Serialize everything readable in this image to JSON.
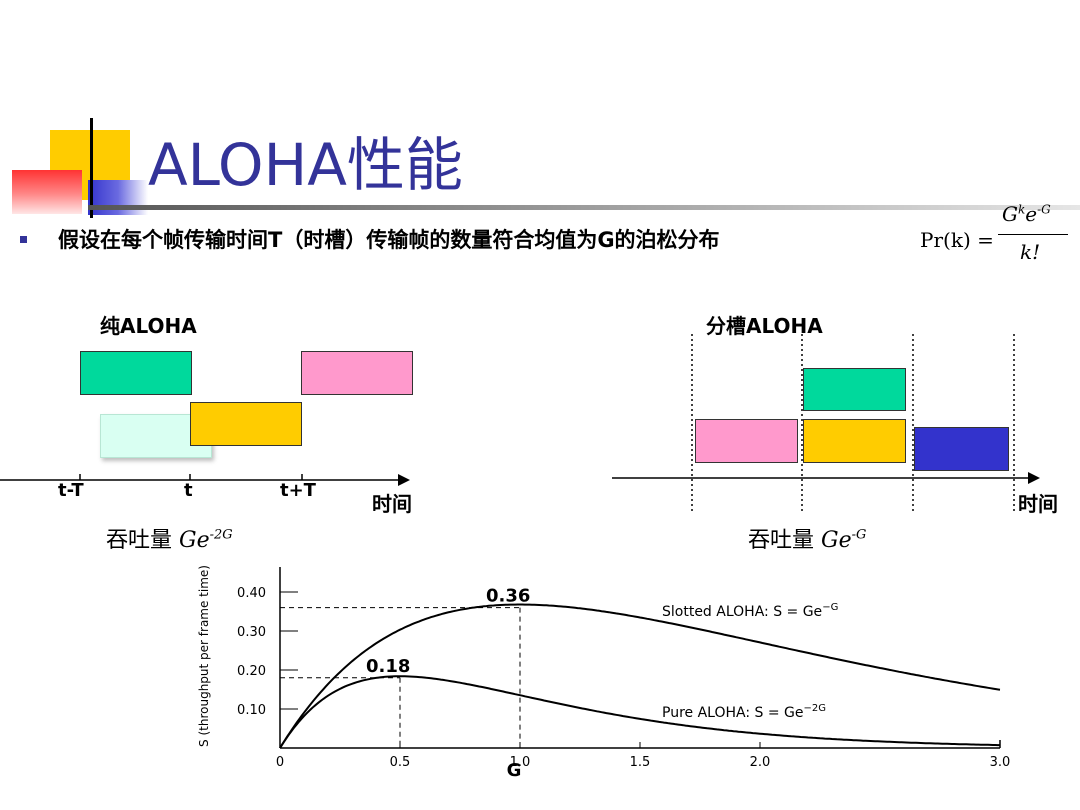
{
  "title": "ALOHA性能",
  "bullet": {
    "text": "假设在每个帧传输时间T（时槽）传输帧的数量符合均值为G的泊松分布",
    "formula_lhs": "Pr(k) =",
    "formula_num": "G",
    "formula_num_sup": "k",
    "formula_num_e": "e",
    "formula_num_e_sup": "-G",
    "formula_den": "k!"
  },
  "pure": {
    "title": "纯ALOHA",
    "ticks": [
      "t-T",
      "t",
      "t+T"
    ],
    "axis_label": "时间",
    "throughput_label": "吞吐量",
    "throughput_formula": "Ge",
    "throughput_sup": "-2G"
  },
  "slotted": {
    "title": "分槽ALOHA",
    "axis_label": "时间",
    "throughput_label": "吞吐量",
    "throughput_formula": "Ge",
    "throughput_sup": "-G"
  },
  "colors": {
    "green": "#00d99c",
    "light_green": "#d9fff2",
    "pink": "#ff99cc",
    "yellow": "#ffcc00",
    "blue": "#3333cc",
    "title": "#333399"
  },
  "chart_data": {
    "type": "line",
    "xlabel": "G",
    "ylabel": "S (throughput per frame time)",
    "xlim": [
      0,
      3.0
    ],
    "ylim": [
      0,
      0.45
    ],
    "x_ticks": [
      "0",
      "0.5",
      "1.0",
      "1.5",
      "2.0",
      "3.0"
    ],
    "y_ticks": [
      "0.40",
      "0.30",
      "0.20",
      "0.10"
    ],
    "series": [
      {
        "name": "Slotted ALOHA: S = Ge",
        "name_sup": "−G",
        "formula": "G*exp(-G)",
        "peak": [
          1.0,
          0.36
        ],
        "peak_label": "0.36"
      },
      {
        "name": "Pure ALOHA: S = Ge",
        "name_sup": "−2G",
        "formula": "G*exp(-2G)",
        "peak": [
          0.5,
          0.18
        ],
        "peak_label": "0.18"
      }
    ]
  }
}
